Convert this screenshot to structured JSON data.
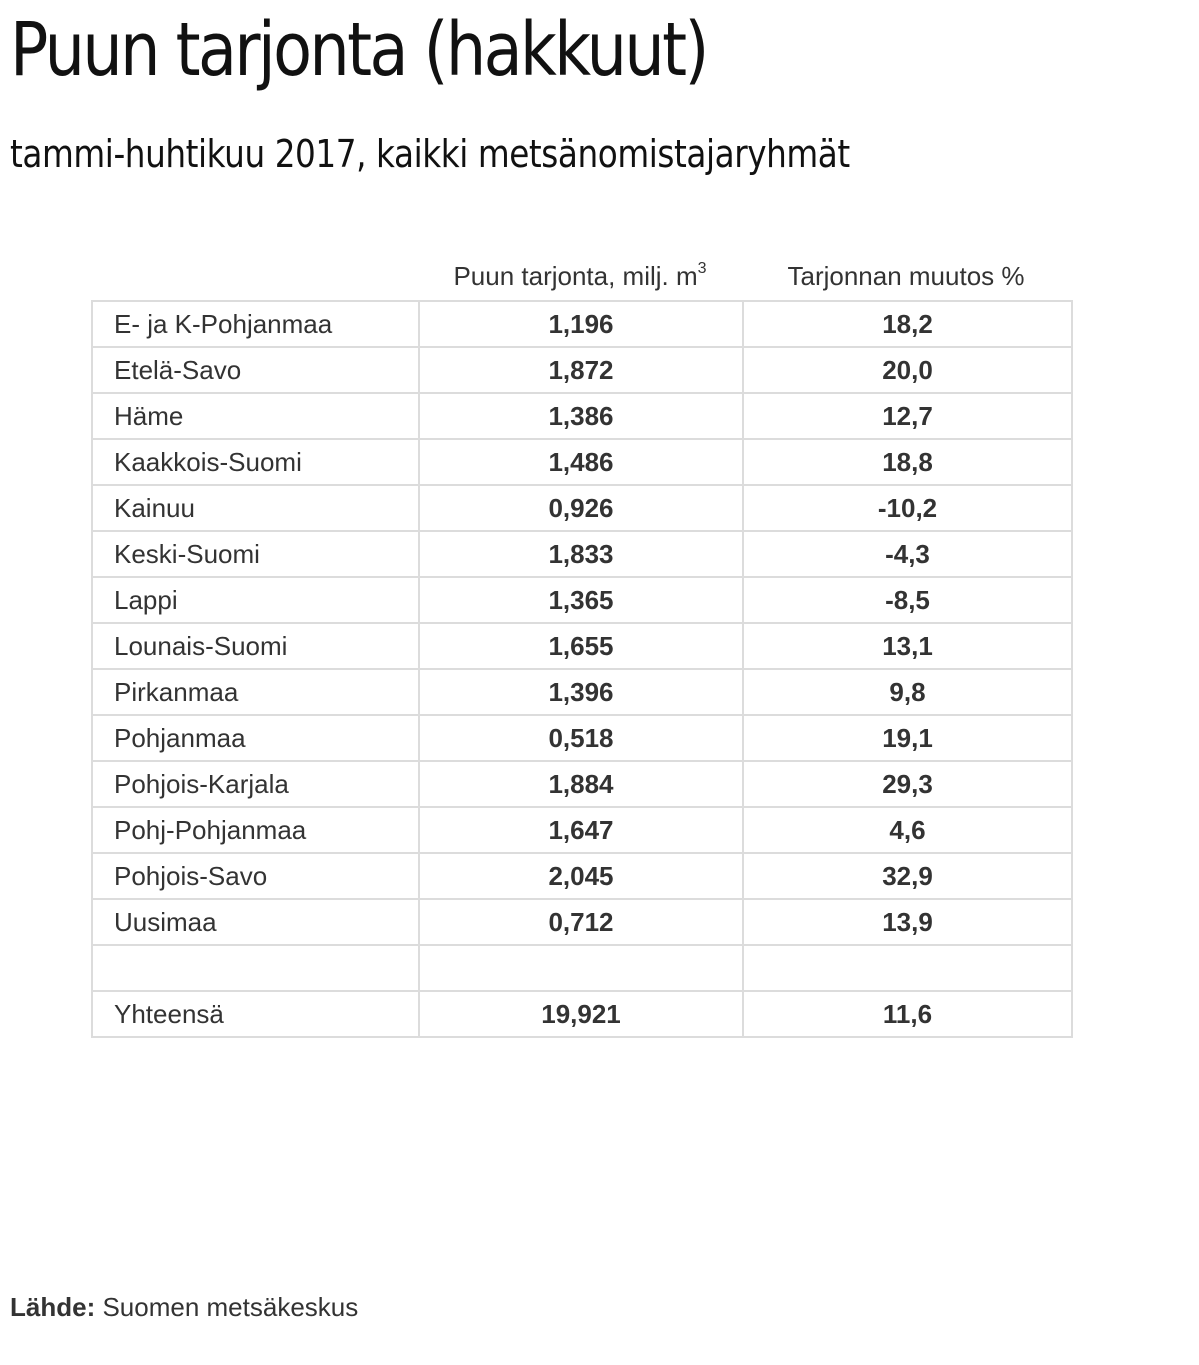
{
  "title": "Puun tarjonta (hakkuut)",
  "subtitle": "tammi-huhtikuu 2017, kaikki metsänomistajaryhmät",
  "table": {
    "headers": {
      "region": "",
      "supply": "Puun tarjonta, milj. m",
      "supply_unit_sup": "3",
      "change": "Tarjonnan muutos %"
    },
    "rows": [
      {
        "region": "E- ja K-Pohjanmaa",
        "supply": "1,196",
        "change": "18,2"
      },
      {
        "region": "Etelä-Savo",
        "supply": "1,872",
        "change": "20,0"
      },
      {
        "region": "Häme",
        "supply": "1,386",
        "change": "12,7"
      },
      {
        "region": "Kaakkois-Suomi",
        "supply": "1,486",
        "change": "18,8"
      },
      {
        "region": "Kainuu",
        "supply": "0,926",
        "change": "-10,2"
      },
      {
        "region": "Keski-Suomi",
        "supply": "1,833",
        "change": "-4,3"
      },
      {
        "region": "Lappi",
        "supply": "1,365",
        "change": "-8,5"
      },
      {
        "region": "Lounais-Suomi",
        "supply": "1,655",
        "change": "13,1"
      },
      {
        "region": "Pirkanmaa",
        "supply": "1,396",
        "change": "9,8"
      },
      {
        "region": "Pohjanmaa",
        "supply": "0,518",
        "change": "19,1"
      },
      {
        "region": "Pohjois-Karjala",
        "supply": "1,884",
        "change": "29,3"
      },
      {
        "region": "Pohj-Pohjanmaa",
        "supply": "1,647",
        "change": "4,6"
      },
      {
        "region": "Pohjois-Savo",
        "supply": "2,045",
        "change": "32,9"
      },
      {
        "region": "Uusimaa",
        "supply": "0,712",
        "change": "13,9"
      },
      {
        "region": "",
        "supply": "",
        "change": ""
      },
      {
        "region": "Yhteensä",
        "supply": "19,921",
        "change": "11,6"
      }
    ]
  },
  "source": {
    "label": "Lähde:",
    "text": " Suomen metsäkeskus"
  }
}
